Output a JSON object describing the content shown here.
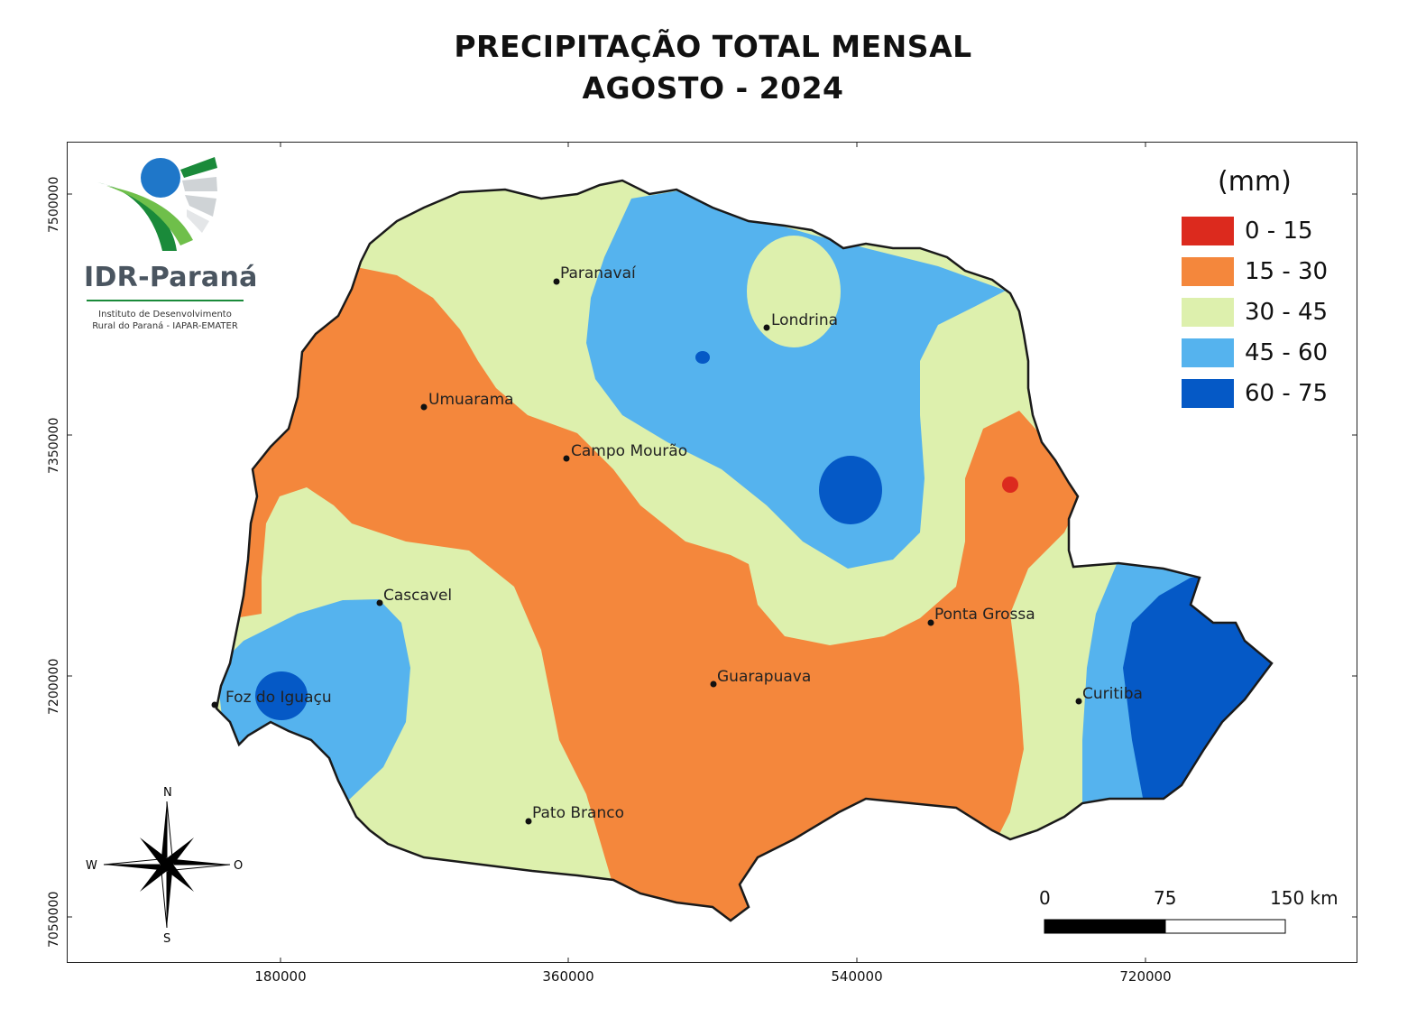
{
  "title_line1": "PRECIPITAÇÃO TOTAL MENSAL",
  "title_line2": "AGOSTO - 2024",
  "logo": {
    "name": "IDR-Paraná",
    "sub1": "Instituto de Desenvolvimento",
    "sub2": "Rural do Paraná - IAPAR-EMATER"
  },
  "legend": {
    "title": "(mm)",
    "classes": [
      {
        "label": "0 - 15",
        "color": "#dc2a1e"
      },
      {
        "label": "15 - 30",
        "color": "#f4873c"
      },
      {
        "label": "30 - 45",
        "color": "#ddf0ad"
      },
      {
        "label": "45 - 60",
        "color": "#55b3ee"
      },
      {
        "label": "60 - 75",
        "color": "#0559c6"
      }
    ]
  },
  "y_ticks": [
    "7500000",
    "7350000",
    "7200000",
    "7050000"
  ],
  "x_ticks": [
    "180000",
    "360000",
    "540000",
    "720000"
  ],
  "cities": [
    {
      "name": "Paranavaí"
    },
    {
      "name": "Londrina"
    },
    {
      "name": "Umuarama"
    },
    {
      "name": "Campo Mourão"
    },
    {
      "name": "Cascavel"
    },
    {
      "name": "Ponta Grossa"
    },
    {
      "name": "Guarapuava"
    },
    {
      "name": "Foz do Iguaçu"
    },
    {
      "name": "Curitiba"
    },
    {
      "name": "Pato Branco"
    }
  ],
  "compass": {
    "n": "N",
    "s": "S",
    "w": "W",
    "o": "O"
  },
  "scale_bar": {
    "l0": "0",
    "l1": "75",
    "l2": "150 km"
  }
}
